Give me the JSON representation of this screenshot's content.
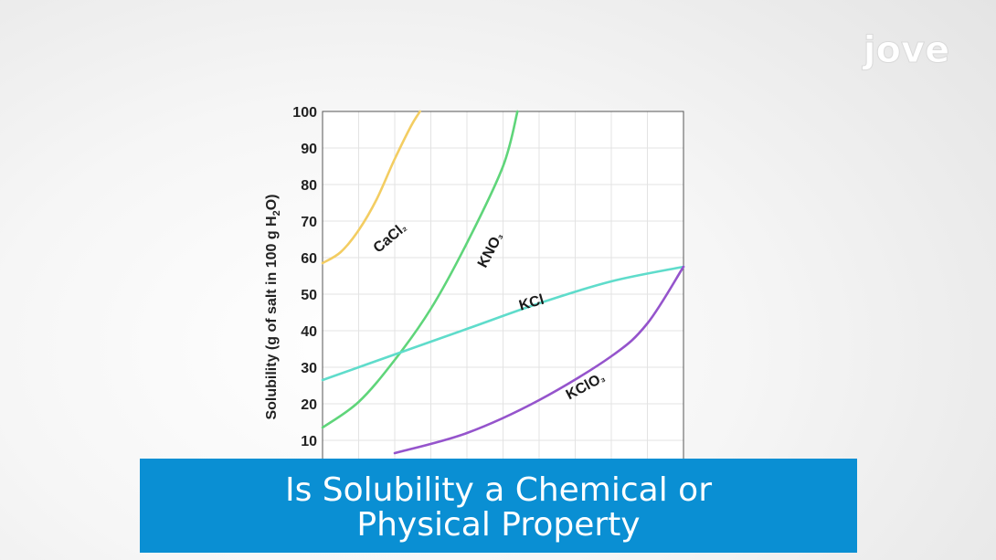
{
  "chart_data": {
    "type": "line",
    "title": "",
    "xlabel": "",
    "ylabel": "Solubility (g of salt in 100 g H2O)",
    "ylabel_parts": [
      "Solubility (g of salt in 100 g H",
      "2",
      "O)"
    ],
    "xlim": [
      0,
      100
    ],
    "ylim": [
      0,
      100
    ],
    "yticks": [
      10,
      20,
      30,
      40,
      50,
      60,
      70,
      80,
      90,
      100
    ],
    "grid": true,
    "legend": "none",
    "series": [
      {
        "name": "CaCl₂",
        "label_parts": [
          "CaCl",
          "₂"
        ],
        "color": "#f3cd62",
        "x": [
          0,
          5,
          10,
          15,
          20,
          24.5,
          27
        ],
        "y": [
          58.5,
          61.5,
          67.5,
          76,
          87,
          96,
          100
        ]
      },
      {
        "name": "KNO₃",
        "label_parts": [
          "KNO",
          "₃"
        ],
        "color": "#5fd57a",
        "x": [
          0,
          10,
          20,
          30,
          40,
          50,
          54
        ],
        "y": [
          13.5,
          20.5,
          32,
          46,
          64,
          85,
          100
        ]
      },
      {
        "name": "KCl",
        "label_parts": [
          "KCl",
          ""
        ],
        "color": "#5fdccb",
        "x": [
          0,
          20,
          40,
          60,
          80,
          100
        ],
        "y": [
          26.5,
          33.5,
          40.5,
          47.5,
          53.5,
          57.5
        ]
      },
      {
        "name": "KClO₃",
        "label_parts": [
          "KClO",
          "₃"
        ],
        "color": "#9554cc",
        "x": [
          20,
          40,
          60,
          80,
          90,
          100
        ],
        "y": [
          6.5,
          12,
          21,
          33,
          42,
          57.5
        ]
      }
    ]
  },
  "banner": {
    "title": "Is Solubility a Chemical or Physical Property"
  },
  "logo": {
    "text": "jove"
  }
}
